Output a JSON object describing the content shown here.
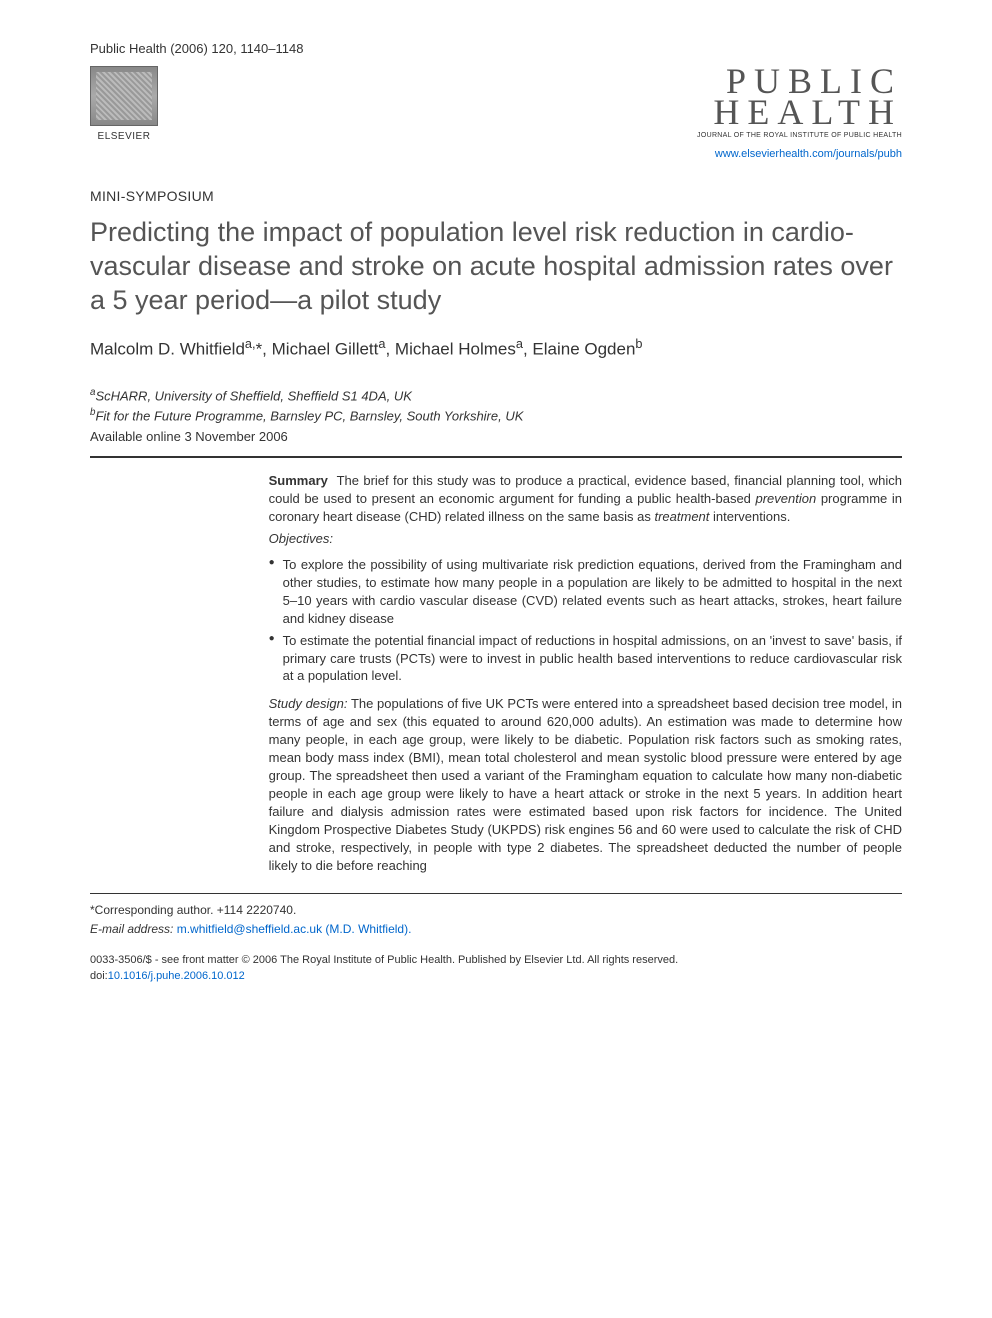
{
  "header": {
    "citation": "Public Health (2006) 120, 1140–1148",
    "elsevier_label": "ELSEVIER",
    "ph_logo_line1": "PUBLIC",
    "ph_logo_line2": "HEALTH",
    "ph_subtitle": "JOURNAL OF THE ROYAL INSTITUTE OF PUBLIC HEALTH",
    "ph_url": "www.elsevierhealth.com/journals/pubh"
  },
  "section_label": "MINI-SYMPOSIUM",
  "title": "Predicting the impact of population level risk reduction in cardio-vascular disease and stroke on acute hospital admission rates over a 5 year period—a pilot study",
  "authors_html": "Malcolm D. Whitfield<sup>a,</sup>*, Michael Gillett<sup>a</sup>, Michael Holmes<sup>a</sup>, Elaine Ogden<sup>b</sup>",
  "affiliations": {
    "a": "aScHARR, University of Sheffield, Sheffield S1 4DA, UK",
    "b": "bFit for the Future Programme, Barnsley PC, Barnsley, South Yorkshire, UK",
    "pub_date": "Available online 3 November 2006"
  },
  "abstract": {
    "summary_label": "Summary",
    "summary_text": "The brief for this study was to produce a practical, evidence based, financial planning tool, which could be used to present an economic argument for funding a public health-based prevention programme in coronary heart disease (CHD) related illness on the same basis as treatment interventions.",
    "objectives_label": "Objectives:",
    "objectives": [
      "To explore the possibility of using multivariate risk prediction equations, derived from the Framingham and other studies, to estimate how many people in a population are likely to be admitted to hospital in the next 5–10 years with cardio vascular disease (CVD) related events such as heart attacks, strokes, heart failure and kidney disease",
      "To estimate the potential financial impact of reductions in hospital admissions, on an 'invest to save' basis, if primary care trusts (PCTs) were to invest in public health based interventions to reduce cardiovascular risk at a population level."
    ],
    "study_design_label": "Study design:",
    "study_design_text": "The populations of five UK PCTs were entered into a spreadsheet based decision tree model, in terms of age and sex (this equated to around 620,000 adults). An estimation was made to determine how many people, in each age group, were likely to be diabetic. Population risk factors such as smoking rates, mean body mass index (BMI), mean total cholesterol and mean systolic blood pressure were entered by age group. The spreadsheet then used a variant of the Framingham equation to calculate how many non-diabetic people in each age group were likely to have a heart attack or stroke in the next 5 years. In addition heart failure and dialysis admission rates were estimated based upon risk factors for incidence. The United Kingdom Prospective Diabetes Study (UKPDS) risk engines 56 and 60 were used to calculate the risk of CHD and stroke, respectively, in people with type 2 diabetes. The spreadsheet deducted the number of people likely to die before reaching"
  },
  "footer": {
    "corresponding": "*Corresponding author. +114 2220740.",
    "email_label": "E-mail address:",
    "email": "m.whitfield@sheffield.ac.uk (M.D. Whitfield).",
    "copyright": "0033-3506/$ - see front matter © 2006 The Royal Institute of Public Health. Published by Elsevier Ltd. All rights reserved.",
    "doi_label": "doi:",
    "doi": "10.1016/j.puhe.2006.10.012"
  },
  "colors": {
    "link": "#0066cc",
    "text": "#333333",
    "title": "#555555"
  }
}
